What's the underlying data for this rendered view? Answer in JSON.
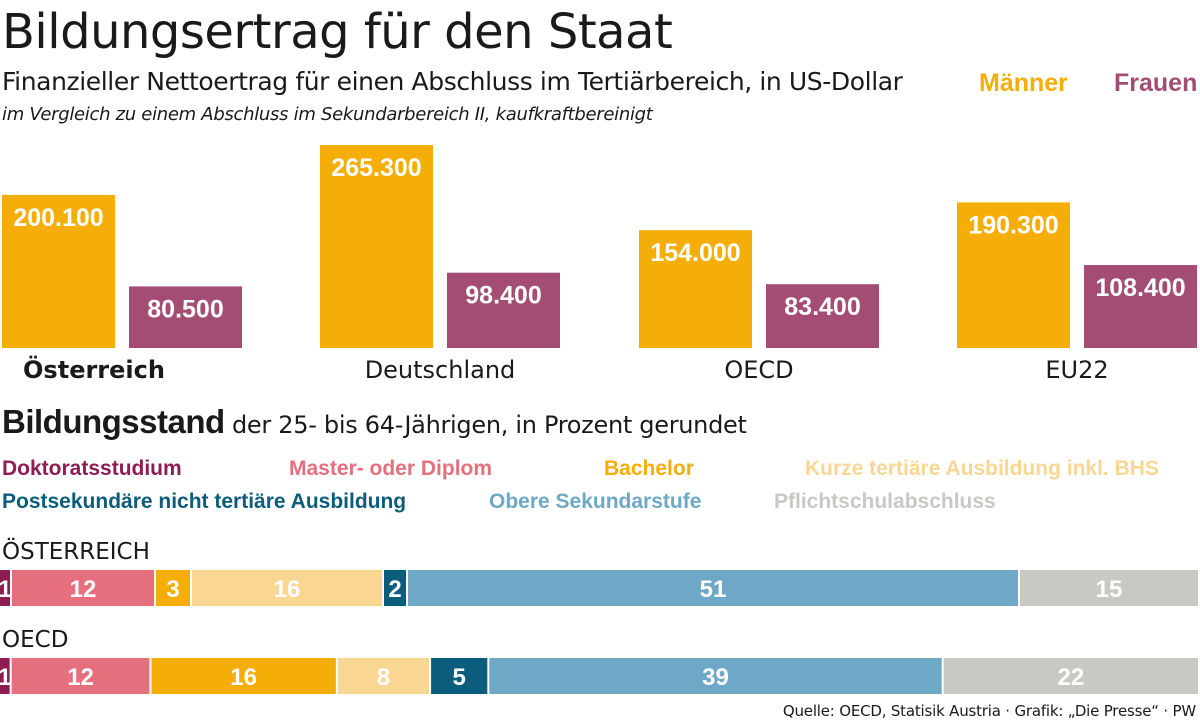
{
  "title": "Bildungsertrag für den Staat",
  "subtitle": "Finanzieller Nettoertrag für einen Abschluss im Tertiärbereich, in US-Dollar",
  "subtitle2": "im Vergleich zu einem Abschluss im Sekundarbereich II, kaufkraftbereinigt",
  "legend": [
    {
      "name": "Männer",
      "color": "#f5ae07"
    },
    {
      "name": "Frauen",
      "color": "#a34d75"
    }
  ],
  "section2": {
    "bold": "Bildungsstand",
    "rest": " der 25- bis 64-Jährigen, in Prozent gerundet"
  },
  "categories_legend": [
    {
      "name": "Doktoratsstudium",
      "color": "#8e1d52"
    },
    {
      "name": "Master- oder Diplom",
      "color": "#e66f7e"
    },
    {
      "name": "Bachelor",
      "color": "#f5ae07"
    },
    {
      "name": "Kurze tertiäre Ausbildung inkl. BHS",
      "color": "#f9d692"
    },
    {
      "name": "Postsekundäre nicht tertiäre Ausbildung",
      "color": "#0c5d7c"
    },
    {
      "name": "Obere Sekundarstufe",
      "color": "#6fa8c6"
    },
    {
      "name": "Pflichtschulabschluss",
      "color": "#c9c8c3"
    }
  ],
  "source": "Quelle: OECD, Statisik Austria · Grafik: „Die Presse“ · PW",
  "chart_data": [
    {
      "type": "bar",
      "categories": [
        "Österreich",
        "Deutschland",
        "OECD",
        "EU22"
      ],
      "series": [
        {
          "name": "Männer",
          "values": [
            200100,
            265300,
            154000,
            190300
          ],
          "labels": [
            "200.100",
            "265.300",
            "154.000",
            "190.300"
          ],
          "color": "#f5ae07"
        },
        {
          "name": "Frauen",
          "values": [
            80500,
            98400,
            83400,
            108400
          ],
          "labels": [
            "80.500",
            "98.400",
            "83.400",
            "108.400"
          ],
          "color": "#a34d75"
        }
      ],
      "title": "Bildungsertrag für den Staat",
      "ylim": [
        0,
        265300
      ],
      "grid": false,
      "legend": "top-right"
    },
    {
      "type": "bar",
      "stacked": true,
      "orientation": "horizontal",
      "categories": [
        "ÖSTERREICH",
        "OECD"
      ],
      "series": [
        {
          "name": "Doktoratsstudium",
          "values": [
            1,
            1
          ],
          "color": "#8e1d52"
        },
        {
          "name": "Master- oder Diplom",
          "values": [
            12,
            12
          ],
          "color": "#e66f7e"
        },
        {
          "name": "Bachelor",
          "values": [
            3,
            16
          ],
          "color": "#f5ae07"
        },
        {
          "name": "Kurze tertiäre Ausbildung inkl. BHS",
          "values": [
            16,
            8
          ],
          "color": "#f9d692"
        },
        {
          "name": "Postsekundäre nicht tertiäre Ausbildung",
          "values": [
            2,
            5
          ],
          "color": "#0c5d7c"
        },
        {
          "name": "Obere Sekundarstufe",
          "values": [
            51,
            39
          ],
          "color": "#6fa8c6"
        },
        {
          "name": "Pflichtschulabschluss",
          "values": [
            15,
            22
          ],
          "color": "#c9c8c3"
        }
      ],
      "title": "Bildungsstand",
      "xlim": [
        0,
        100
      ],
      "legend": "top"
    }
  ]
}
